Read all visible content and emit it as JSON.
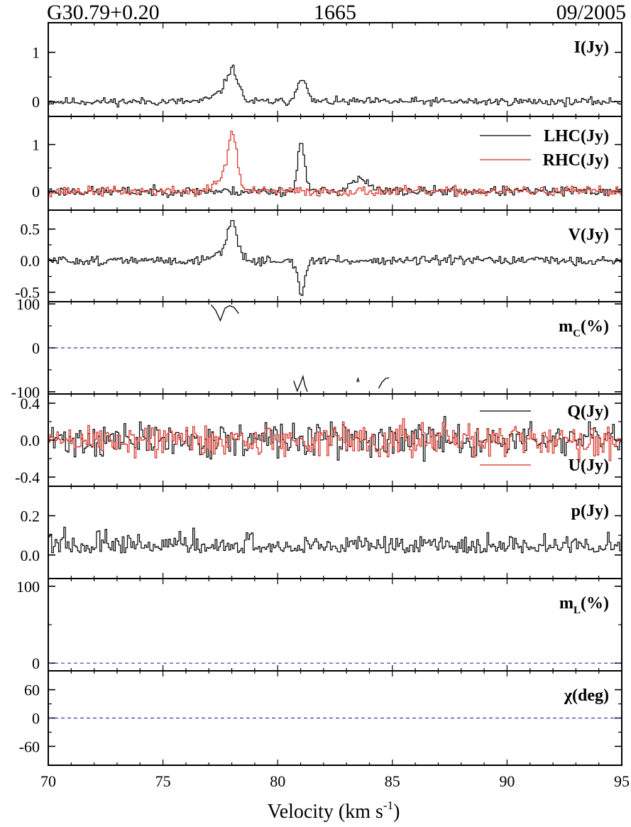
{
  "header": {
    "source": "G30.79+0.20",
    "frequency": "1665",
    "epoch": "09/2005"
  },
  "chart_data": {
    "type": "line",
    "style": "step",
    "xlabel": "Velocity (km s",
    "xlabel_exp": "-1",
    "xlabel_close": ")",
    "xlim": [
      70,
      95
    ],
    "xticks": [
      70,
      75,
      80,
      85,
      90,
      95
    ],
    "xtick_labels": [
      "70",
      "75",
      "80",
      "85",
      "90",
      "95"
    ],
    "colors": {
      "black": "#000000",
      "red": "#d62a1e",
      "zero_line": "#3a3aa0"
    },
    "panels": [
      {
        "id": "I",
        "label": "I(Jy)",
        "ylim": [
          -0.3,
          1.6
        ],
        "yticks": [
          0,
          1
        ],
        "ytick_labels": [
          "0",
          "1"
        ],
        "series": [
          {
            "name": "",
            "color": "black",
            "features": [
              [
                78.0,
                0.6,
                0.25
              ],
              [
                81.0,
                0.5,
                0.2
              ],
              [
                77.5,
                0.15,
                0.4
              ]
            ],
            "noise": 0.04,
            "seed": 11
          }
        ]
      },
      {
        "id": "LR",
        "label": "",
        "ylim": [
          -0.4,
          1.6
        ],
        "yticks": [
          0,
          1
        ],
        "ytick_labels": [
          "0",
          "1"
        ],
        "legend": [
          {
            "label": "LHC(Jy)",
            "color": "black"
          },
          {
            "label": "RHC(Jy)",
            "color": "red"
          }
        ],
        "series": [
          {
            "name": "LHC(Jy)",
            "color": "black",
            "features": [
              [
                81.0,
                1.1,
                0.15
              ],
              [
                83.5,
                0.25,
                0.4
              ]
            ],
            "noise": 0.05,
            "seed": 23
          },
          {
            "name": "RHC(Jy)",
            "color": "red",
            "features": [
              [
                78.0,
                1.2,
                0.2
              ],
              [
                77.5,
                0.25,
                0.3
              ]
            ],
            "noise": 0.05,
            "seed": 37
          }
        ]
      },
      {
        "id": "V",
        "label": "V(Jy)",
        "ylim": [
          -0.65,
          0.8
        ],
        "yticks": [
          -0.5,
          0,
          0.5
        ],
        "ytick_labels": [
          "-0.5",
          "0.0",
          "0.5"
        ],
        "series": [
          {
            "name": "",
            "color": "black",
            "features": [
              [
                78.0,
                0.6,
                0.22
              ],
              [
                81.0,
                -0.55,
                0.15
              ],
              [
                77.4,
                0.12,
                0.3
              ]
            ],
            "noise": 0.035,
            "seed": 51
          }
        ]
      },
      {
        "id": "mc",
        "label": "m",
        "label_sub": "C",
        "label_tail": "(%)",
        "ylim": [
          -105,
          105
        ],
        "yticks": [
          -100,
          0,
          100
        ],
        "ytick_labels": [
          "-100",
          "0",
          "100"
        ],
        "zero_line": true,
        "segments": [
          {
            "color": "black",
            "x": [
              77.1,
              77.3,
              77.5,
              77.7,
              77.9,
              78.1,
              78.3
            ],
            "y": [
              98,
              85,
              62,
              90,
              96,
              92,
              78
            ]
          },
          {
            "color": "black",
            "x": [
              80.7,
              80.85,
              81.0,
              81.1,
              81.2,
              81.3
            ],
            "y": [
              -75,
              -98,
              -80,
              -65,
              -88,
              -100
            ]
          },
          {
            "color": "black",
            "x": [
              83.45,
              83.5,
              83.55
            ],
            "y": [
              -78,
              -70,
              -78
            ]
          },
          {
            "color": "black",
            "x": [
              84.4,
              84.55,
              84.7,
              84.85
            ],
            "y": [
              -92,
              -78,
              -70,
              -68
            ]
          }
        ]
      },
      {
        "id": "QU",
        "label": "",
        "ylim": [
          -0.5,
          0.5
        ],
        "yticks": [
          -0.4,
          0,
          0.4
        ],
        "ytick_labels": [
          "-0.4",
          "0.0",
          "0.4"
        ],
        "legend": [
          {
            "label": "Q(Jy)",
            "color": "black"
          },
          {
            "label": "U(Jy)",
            "color": "red"
          }
        ],
        "series": [
          {
            "name": "Q(Jy)",
            "color": "black",
            "features": [],
            "noise": 0.09,
            "seed": 71
          },
          {
            "name": "U(Jy)",
            "color": "red",
            "features": [],
            "noise": 0.09,
            "seed": 89
          }
        ]
      },
      {
        "id": "p",
        "label": "p(Jy)",
        "ylim": [
          -0.12,
          0.35
        ],
        "yticks": [
          0,
          0.2
        ],
        "ytick_labels": [
          "0.0",
          "0.2"
        ],
        "series": [
          {
            "name": "",
            "color": "black",
            "features": [],
            "noise": 0.045,
            "abs": true,
            "offset": 0.01,
            "seed": 97
          }
        ]
      },
      {
        "id": "mL",
        "label": "m",
        "label_sub": "L",
        "label_tail": "(%)",
        "ylim": [
          -10,
          110
        ],
        "yticks": [
          0,
          100
        ],
        "ytick_labels": [
          "0",
          "100"
        ],
        "zero_line": true
      },
      {
        "id": "chi",
        "label": "χ(deg)",
        "ylim": [
          -100,
          100
        ],
        "yticks": [
          -60,
          0,
          60
        ],
        "ytick_labels": [
          "-60",
          "0",
          "60"
        ],
        "zero_line": true
      }
    ]
  }
}
